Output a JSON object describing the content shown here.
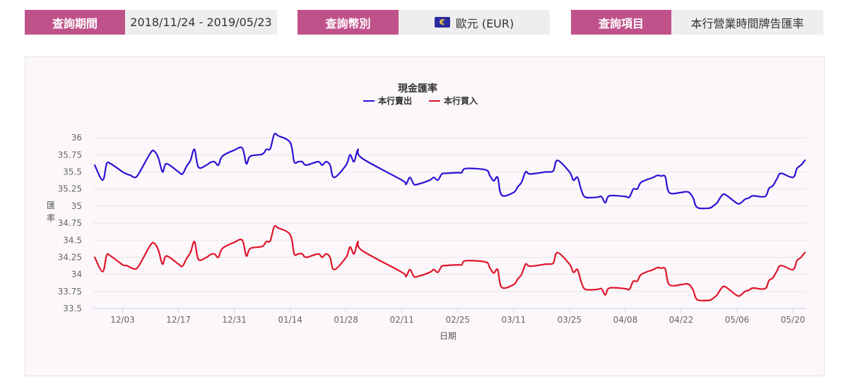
{
  "query": {
    "period_label": "查詢期間",
    "period_value": "2018/11/24 - 2019/05/23",
    "currency_label": "查詢幣別",
    "currency_value": "歐元 (EUR)",
    "item_label": "查詢項目",
    "item_value": "本行營業時間牌告匯率"
  },
  "colors": {
    "accent": "#c0528b",
    "sell": "#2d0fd6",
    "buy": "#e0142b"
  },
  "chart_data": {
    "type": "line",
    "title": "現金匯率",
    "xlabel": "日期",
    "ylabel": "匯率",
    "ylim": [
      33.5,
      36.25
    ],
    "y_ticks": [
      33.5,
      33.75,
      34,
      34.25,
      34.5,
      34.75,
      35,
      35.25,
      35.5,
      35.75,
      36
    ],
    "y_tick_labels": [
      "33.5",
      "33.75",
      "34",
      "34.25",
      "34.5",
      "34.75",
      "35",
      "35.25",
      "35.5",
      "35.75",
      "36"
    ],
    "x_tick_labels": [
      "12/03",
      "12/17",
      "12/31",
      "01/14",
      "01/28",
      "02/11",
      "02/25",
      "03/11",
      "03/25",
      "04/08",
      "04/22",
      "05/06",
      "05/20"
    ],
    "x_tick_dates": [
      "2018-12-03",
      "2018-12-17",
      "2018-12-31",
      "2019-01-14",
      "2019-01-28",
      "2019-02-11",
      "2019-02-25",
      "2019-03-11",
      "2019-03-25",
      "2019-04-08",
      "2019-04-22",
      "2019-05-06",
      "2019-05-20"
    ],
    "x_range": [
      "2018-11-26",
      "2019-05-23"
    ],
    "grid": true,
    "legend_position": "top-center",
    "series": [
      {
        "name": "本行賣出",
        "color": "#2d0fd6",
        "points": [
          [
            "2018-11-26",
            35.6
          ],
          [
            "2018-11-28",
            35.38
          ],
          [
            "2018-11-29",
            35.62
          ],
          [
            "2018-11-30",
            35.62
          ],
          [
            "2018-12-03",
            35.5
          ],
          [
            "2018-12-04",
            35.47
          ],
          [
            "2018-12-05",
            35.45
          ],
          [
            "2018-12-06",
            35.42
          ],
          [
            "2018-12-07",
            35.47
          ],
          [
            "2018-12-10",
            35.78
          ],
          [
            "2018-12-11",
            35.8
          ],
          [
            "2018-12-12",
            35.7
          ],
          [
            "2018-12-13",
            35.5
          ],
          [
            "2018-12-14",
            35.62
          ],
          [
            "2018-12-17",
            35.5
          ],
          [
            "2018-12-18",
            35.47
          ],
          [
            "2018-12-19",
            35.58
          ],
          [
            "2018-12-20",
            35.67
          ],
          [
            "2018-12-21",
            35.83
          ],
          [
            "2018-12-22",
            35.57
          ],
          [
            "2018-12-24",
            35.6
          ],
          [
            "2018-12-25",
            35.64
          ],
          [
            "2018-12-26",
            35.65
          ],
          [
            "2018-12-27",
            35.6
          ],
          [
            "2018-12-28",
            35.73
          ],
          [
            "2018-12-31",
            35.82
          ],
          [
            "2019-01-02",
            35.85
          ],
          [
            "2019-01-03",
            35.62
          ],
          [
            "2019-01-04",
            35.73
          ],
          [
            "2019-01-07",
            35.76
          ],
          [
            "2019-01-08",
            35.83
          ],
          [
            "2019-01-09",
            35.84
          ],
          [
            "2019-01-10",
            36.05
          ],
          [
            "2019-01-11",
            36.03
          ],
          [
            "2019-01-14",
            35.93
          ],
          [
            "2019-01-15",
            35.65
          ],
          [
            "2019-01-16",
            35.65
          ],
          [
            "2019-01-17",
            35.65
          ],
          [
            "2019-01-18",
            35.6
          ],
          [
            "2019-01-21",
            35.65
          ],
          [
            "2019-01-22",
            35.6
          ],
          [
            "2019-01-23",
            35.65
          ],
          [
            "2019-01-24",
            35.6
          ],
          [
            "2019-01-25",
            35.42
          ],
          [
            "2019-01-28",
            35.6
          ],
          [
            "2019-01-29",
            35.75
          ],
          [
            "2019-01-30",
            35.65
          ],
          [
            "2019-01-31",
            35.83
          ],
          [
            "2019-02-01",
            35.7
          ],
          [
            "2019-02-11",
            35.38
          ],
          [
            "2019-02-12",
            35.32
          ],
          [
            "2019-02-13",
            35.42
          ],
          [
            "2019-02-14",
            35.32
          ],
          [
            "2019-02-15",
            35.32
          ],
          [
            "2019-02-18",
            35.38
          ],
          [
            "2019-02-19",
            35.42
          ],
          [
            "2019-02-20",
            35.38
          ],
          [
            "2019-02-21",
            35.47
          ],
          [
            "2019-02-22",
            35.48
          ],
          [
            "2019-02-25",
            35.49
          ],
          [
            "2019-02-26",
            35.49
          ],
          [
            "2019-02-27",
            35.55
          ],
          [
            "2019-03-04",
            35.53
          ],
          [
            "2019-03-05",
            35.45
          ],
          [
            "2019-03-06",
            35.37
          ],
          [
            "2019-03-07",
            35.42
          ],
          [
            "2019-03-08",
            35.16
          ],
          [
            "2019-03-11",
            35.2
          ],
          [
            "2019-03-12",
            35.28
          ],
          [
            "2019-03-13",
            35.35
          ],
          [
            "2019-03-14",
            35.5
          ],
          [
            "2019-03-15",
            35.47
          ],
          [
            "2019-03-18",
            35.49
          ],
          [
            "2019-03-19",
            35.5
          ],
          [
            "2019-03-20",
            35.5
          ],
          [
            "2019-03-21",
            35.52
          ],
          [
            "2019-03-22",
            35.67
          ],
          [
            "2019-03-25",
            35.5
          ],
          [
            "2019-03-26",
            35.38
          ],
          [
            "2019-03-27",
            35.42
          ],
          [
            "2019-03-28",
            35.23
          ],
          [
            "2019-03-29",
            35.13
          ],
          [
            "2019-04-01",
            35.13
          ],
          [
            "2019-04-02",
            35.14
          ],
          [
            "2019-04-03",
            35.05
          ],
          [
            "2019-04-04",
            35.15
          ],
          [
            "2019-04-08",
            35.14
          ],
          [
            "2019-04-09",
            35.13
          ],
          [
            "2019-04-10",
            35.25
          ],
          [
            "2019-04-11",
            35.25
          ],
          [
            "2019-04-12",
            35.35
          ],
          [
            "2019-04-15",
            35.42
          ],
          [
            "2019-04-16",
            35.45
          ],
          [
            "2019-04-17",
            35.44
          ],
          [
            "2019-04-18",
            35.43
          ],
          [
            "2019-04-19",
            35.2
          ],
          [
            "2019-04-22",
            35.2
          ],
          [
            "2019-04-23",
            35.21
          ],
          [
            "2019-04-24",
            35.2
          ],
          [
            "2019-04-25",
            35.12
          ],
          [
            "2019-04-26",
            34.98
          ],
          [
            "2019-04-29",
            34.97
          ],
          [
            "2019-04-30",
            35.0
          ],
          [
            "2019-05-01",
            35.05
          ],
          [
            "2019-05-02",
            35.14
          ],
          [
            "2019-05-03",
            35.17
          ],
          [
            "2019-05-06",
            35.04
          ],
          [
            "2019-05-07",
            35.05
          ],
          [
            "2019-05-08",
            35.1
          ],
          [
            "2019-05-09",
            35.12
          ],
          [
            "2019-05-10",
            35.15
          ],
          [
            "2019-05-13",
            35.14
          ],
          [
            "2019-05-14",
            35.26
          ],
          [
            "2019-05-15",
            35.3
          ],
          [
            "2019-05-16",
            35.4
          ],
          [
            "2019-05-17",
            35.48
          ],
          [
            "2019-05-20",
            35.42
          ],
          [
            "2019-05-21",
            35.55
          ],
          [
            "2019-05-22",
            35.6
          ],
          [
            "2019-05-23",
            35.67
          ]
        ]
      },
      {
        "name": "本行買入",
        "color": "#e0142b",
        "points": [
          [
            "2018-11-26",
            34.25
          ],
          [
            "2018-11-28",
            34.04
          ],
          [
            "2018-11-29",
            34.28
          ],
          [
            "2018-11-30",
            34.27
          ],
          [
            "2018-12-03",
            34.14
          ],
          [
            "2018-12-04",
            34.13
          ],
          [
            "2018-12-05",
            34.1
          ],
          [
            "2018-12-06",
            34.08
          ],
          [
            "2018-12-07",
            34.12
          ],
          [
            "2018-12-10",
            34.43
          ],
          [
            "2018-12-11",
            34.45
          ],
          [
            "2018-12-12",
            34.35
          ],
          [
            "2018-12-13",
            34.15
          ],
          [
            "2018-12-14",
            34.27
          ],
          [
            "2018-12-17",
            34.15
          ],
          [
            "2018-12-18",
            34.12
          ],
          [
            "2018-12-19",
            34.23
          ],
          [
            "2018-12-20",
            34.32
          ],
          [
            "2018-12-21",
            34.48
          ],
          [
            "2018-12-22",
            34.22
          ],
          [
            "2018-12-24",
            34.25
          ],
          [
            "2018-12-25",
            34.29
          ],
          [
            "2018-12-26",
            34.3
          ],
          [
            "2018-12-27",
            34.25
          ],
          [
            "2018-12-28",
            34.38
          ],
          [
            "2018-12-31",
            34.47
          ],
          [
            "2019-01-02",
            34.5
          ],
          [
            "2019-01-03",
            34.27
          ],
          [
            "2019-01-04",
            34.38
          ],
          [
            "2019-01-07",
            34.41
          ],
          [
            "2019-01-08",
            34.48
          ],
          [
            "2019-01-09",
            34.49
          ],
          [
            "2019-01-10",
            34.7
          ],
          [
            "2019-01-11",
            34.68
          ],
          [
            "2019-01-14",
            34.58
          ],
          [
            "2019-01-15",
            34.3
          ],
          [
            "2019-01-16",
            34.3
          ],
          [
            "2019-01-17",
            34.3
          ],
          [
            "2019-01-18",
            34.25
          ],
          [
            "2019-01-21",
            34.3
          ],
          [
            "2019-01-22",
            34.25
          ],
          [
            "2019-01-23",
            34.3
          ],
          [
            "2019-01-24",
            34.25
          ],
          [
            "2019-01-25",
            34.07
          ],
          [
            "2019-01-28",
            34.25
          ],
          [
            "2019-01-29",
            34.4
          ],
          [
            "2019-01-30",
            34.3
          ],
          [
            "2019-01-31",
            34.48
          ],
          [
            "2019-02-01",
            34.35
          ],
          [
            "2019-02-11",
            34.03
          ],
          [
            "2019-02-12",
            33.97
          ],
          [
            "2019-02-13",
            34.07
          ],
          [
            "2019-02-14",
            33.97
          ],
          [
            "2019-02-15",
            33.97
          ],
          [
            "2019-02-18",
            34.03
          ],
          [
            "2019-02-19",
            34.07
          ],
          [
            "2019-02-20",
            34.03
          ],
          [
            "2019-02-21",
            34.12
          ],
          [
            "2019-02-22",
            34.13
          ],
          [
            "2019-02-25",
            34.14
          ],
          [
            "2019-02-26",
            34.14
          ],
          [
            "2019-02-27",
            34.2
          ],
          [
            "2019-03-04",
            34.18
          ],
          [
            "2019-03-05",
            34.1
          ],
          [
            "2019-03-06",
            34.02
          ],
          [
            "2019-03-07",
            34.07
          ],
          [
            "2019-03-08",
            33.81
          ],
          [
            "2019-03-11",
            33.85
          ],
          [
            "2019-03-12",
            33.93
          ],
          [
            "2019-03-13",
            34.0
          ],
          [
            "2019-03-14",
            34.15
          ],
          [
            "2019-03-15",
            34.12
          ],
          [
            "2019-03-18",
            34.14
          ],
          [
            "2019-03-19",
            34.15
          ],
          [
            "2019-03-20",
            34.15
          ],
          [
            "2019-03-21",
            34.17
          ],
          [
            "2019-03-22",
            34.32
          ],
          [
            "2019-03-25",
            34.15
          ],
          [
            "2019-03-26",
            34.03
          ],
          [
            "2019-03-27",
            34.07
          ],
          [
            "2019-03-28",
            33.88
          ],
          [
            "2019-03-29",
            33.78
          ],
          [
            "2019-04-01",
            33.78
          ],
          [
            "2019-04-02",
            33.79
          ],
          [
            "2019-04-03",
            33.7
          ],
          [
            "2019-04-04",
            33.8
          ],
          [
            "2019-04-08",
            33.79
          ],
          [
            "2019-04-09",
            33.78
          ],
          [
            "2019-04-10",
            33.9
          ],
          [
            "2019-04-11",
            33.9
          ],
          [
            "2019-04-12",
            34.0
          ],
          [
            "2019-04-15",
            34.07
          ],
          [
            "2019-04-16",
            34.1
          ],
          [
            "2019-04-17",
            34.09
          ],
          [
            "2019-04-18",
            34.08
          ],
          [
            "2019-04-19",
            33.85
          ],
          [
            "2019-04-22",
            33.85
          ],
          [
            "2019-04-23",
            33.86
          ],
          [
            "2019-04-24",
            33.85
          ],
          [
            "2019-04-25",
            33.77
          ],
          [
            "2019-04-26",
            33.63
          ],
          [
            "2019-04-29",
            33.62
          ],
          [
            "2019-04-30",
            33.65
          ],
          [
            "2019-05-01",
            33.7
          ],
          [
            "2019-05-02",
            33.79
          ],
          [
            "2019-05-03",
            33.82
          ],
          [
            "2019-05-06",
            33.69
          ],
          [
            "2019-05-07",
            33.7
          ],
          [
            "2019-05-08",
            33.75
          ],
          [
            "2019-05-09",
            33.77
          ],
          [
            "2019-05-10",
            33.8
          ],
          [
            "2019-05-13",
            33.79
          ],
          [
            "2019-05-14",
            33.91
          ],
          [
            "2019-05-15",
            33.95
          ],
          [
            "2019-05-16",
            34.05
          ],
          [
            "2019-05-17",
            34.13
          ],
          [
            "2019-05-20",
            34.07
          ],
          [
            "2019-05-21",
            34.2
          ],
          [
            "2019-05-22",
            34.25
          ],
          [
            "2019-05-23",
            34.32
          ]
        ]
      }
    ]
  }
}
